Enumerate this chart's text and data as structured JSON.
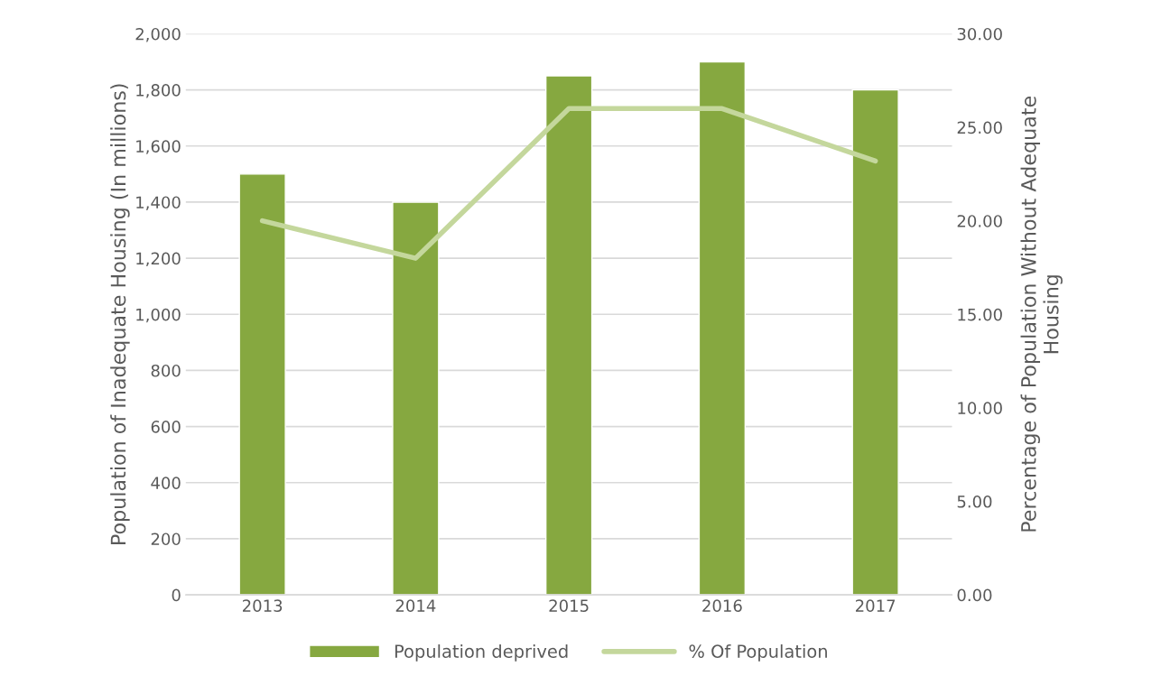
{
  "chart_data": {
    "type": "bar",
    "categories": [
      "2013",
      "2014",
      "2015",
      "2016",
      "2017"
    ],
    "ylabel": "Population of Inadequate Housing (In millions)",
    "y2label": "Percentage of Population Without Adequate\nHousing",
    "series": [
      {
        "name": "Population deprived",
        "color": "#86a840",
        "values": [
          1500,
          1400,
          1850,
          1900,
          1800
        ]
      },
      {
        "name": "% Of Population",
        "type": "line",
        "axis": "y2",
        "color": "#c4d79c",
        "values": [
          20,
          18,
          26,
          26,
          23.2
        ]
      }
    ],
    "ylim": [
      0,
      2000
    ],
    "yticks": [
      {
        "value": 0,
        "label": "0"
      },
      {
        "value": 200,
        "label": "200"
      },
      {
        "value": 400,
        "label": "400"
      },
      {
        "value": 600,
        "label": "600"
      },
      {
        "value": 800,
        "label": "800"
      },
      {
        "value": 1000,
        "label": "1,000"
      },
      {
        "value": 1200,
        "label": "1,200"
      },
      {
        "value": 1400,
        "label": "1,400"
      },
      {
        "value": 1600,
        "label": "1,600"
      },
      {
        "value": 1800,
        "label": "1,800"
      },
      {
        "value": 2000,
        "label": "2,000"
      }
    ],
    "y2lim": [
      0,
      30
    ],
    "y2ticks": [
      {
        "value": 0,
        "label": "0.00"
      },
      {
        "value": 5,
        "label": "5.00"
      },
      {
        "value": 10,
        "label": "10.00"
      },
      {
        "value": 15,
        "label": "15.00"
      },
      {
        "value": 20,
        "label": "20.00"
      },
      {
        "value": 25,
        "label": "25.00"
      },
      {
        "value": 30,
        "label": "30.00"
      }
    ],
    "grid": "y",
    "legend": "bottom",
    "marker": "none",
    "line_style": "solid"
  }
}
